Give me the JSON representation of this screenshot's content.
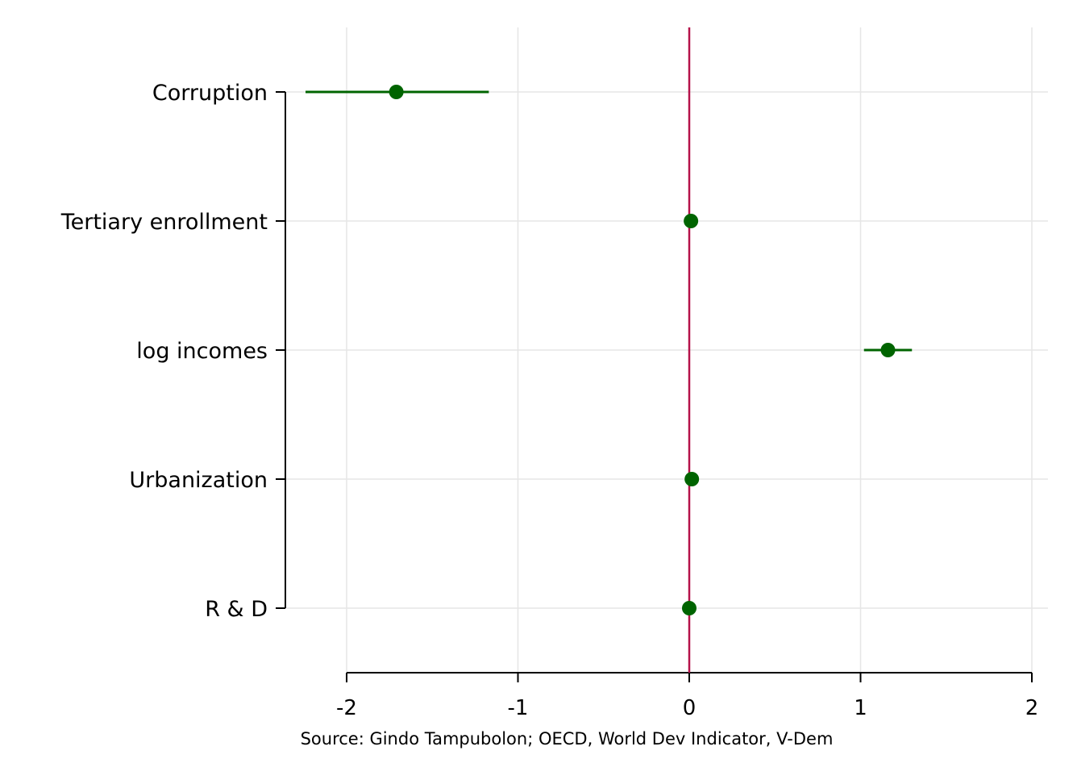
{
  "chart_data": {
    "type": "scatter",
    "subtype": "coefficient-plot",
    "title": "",
    "xlabel": "",
    "ylabel": "",
    "xlim": [
      -2,
      2
    ],
    "xticks": [
      -2,
      -1,
      0,
      1,
      2
    ],
    "grid": true,
    "legend": "none",
    "reference_line": {
      "x": 0,
      "color": "#b5124a"
    },
    "series": [
      {
        "color": "#006400",
        "points": [
          {
            "label": "Corruption",
            "estimate": -1.71,
            "ci_low": -2.24,
            "ci_high": -1.17
          },
          {
            "label": "Tertiary enrollment",
            "estimate": 0.01,
            "ci_low": 0.0,
            "ci_high": 0.02
          },
          {
            "label": "log incomes",
            "estimate": 1.16,
            "ci_low": 1.02,
            "ci_high": 1.3
          },
          {
            "label": "Urbanization",
            "estimate": 0.015,
            "ci_low": 0.005,
            "ci_high": 0.025
          },
          {
            "label": "R & D",
            "estimate": 0.0,
            "ci_low": -0.01,
            "ci_high": 0.01
          }
        ]
      }
    ],
    "note": "Source: Gindo Tampubolon; OECD, World Dev Indicator, V-Dem"
  }
}
